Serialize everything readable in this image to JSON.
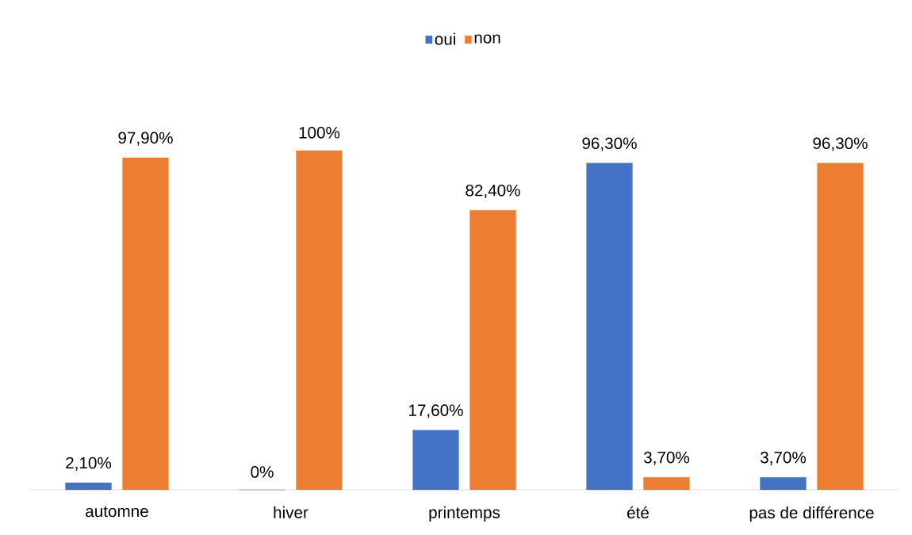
{
  "chart_data": {
    "type": "bar",
    "categories": [
      "automne",
      "hiver",
      "printemps",
      "été",
      "pas de différence"
    ],
    "series": [
      {
        "name": "oui",
        "color": "#4472c4",
        "values": [
          2.1,
          0,
          17.6,
          96.3,
          3.7
        ],
        "value_labels": [
          "2,10%",
          "0%",
          "17,60%",
          "96,30%",
          "3,70%"
        ]
      },
      {
        "name": "non",
        "color": "#ed7d31",
        "values": [
          97.9,
          100,
          82.4,
          3.7,
          96.3
        ],
        "value_labels": [
          "97,90%",
          "100%",
          "82,40%",
          "3,70%",
          "96,30%"
        ]
      }
    ],
    "legend": "top"
  }
}
